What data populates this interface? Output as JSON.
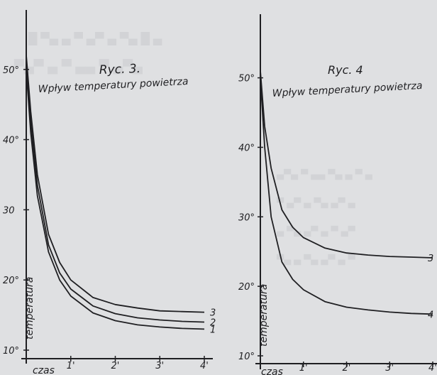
{
  "chart_data": [
    {
      "type": "line",
      "title": "Ryc. 3.",
      "subtitle": "Wpływ temperatury powietrza",
      "xlabel": "czas",
      "ylabel": "temperatura",
      "xlim": [
        0,
        4
      ],
      "ylim": [
        10,
        52
      ],
      "x_ticks": [
        "1'",
        "2'",
        "3'",
        "4'"
      ],
      "y_ticks": [
        "10°",
        "20°",
        "30",
        "40°",
        "50°"
      ],
      "series": [
        {
          "name": "3",
          "x": [
            0,
            0.1,
            0.25,
            0.5,
            0.75,
            1,
            1.5,
            2,
            2.5,
            3,
            3.5,
            4
          ],
          "y": [
            52,
            44,
            35,
            26.5,
            22.5,
            20,
            17.5,
            16.5,
            16,
            15.6,
            15.5,
            15.4
          ]
        },
        {
          "name": "2",
          "x": [
            0,
            0.1,
            0.25,
            0.5,
            0.75,
            1,
            1.5,
            2,
            2.5,
            3,
            3.5,
            4
          ],
          "y": [
            51,
            42.5,
            33.5,
            25,
            21,
            18.7,
            16.3,
            15.2,
            14.6,
            14.3,
            14.1,
            14.0
          ]
        },
        {
          "name": "1",
          "x": [
            0,
            0.1,
            0.25,
            0.5,
            0.75,
            1,
            1.5,
            2,
            2.5,
            3,
            3.5,
            4
          ],
          "y": [
            50,
            41,
            32,
            24,
            20,
            17.7,
            15.3,
            14.2,
            13.6,
            13.3,
            13.1,
            13.0
          ]
        }
      ]
    },
    {
      "type": "line",
      "title": "Ryc. 4",
      "subtitle": "Wpływ temperatury powietrza",
      "xlabel": "czas",
      "ylabel": "temperatura",
      "xlim": [
        0,
        4
      ],
      "ylim": [
        10,
        52
      ],
      "x_ticks": [
        "1'",
        "2'",
        "3'",
        "4'"
      ],
      "y_ticks": [
        "10°",
        "20°",
        "30°",
        "40°",
        "50°"
      ],
      "series": [
        {
          "name": "3",
          "x": [
            0,
            0.1,
            0.25,
            0.5,
            0.75,
            1,
            1.5,
            2,
            2.5,
            3,
            3.5,
            4
          ],
          "y": [
            51,
            43,
            37,
            31,
            28.5,
            27,
            25.5,
            24.8,
            24.5,
            24.3,
            24.2,
            24.1
          ]
        },
        {
          "name": "4",
          "x": [
            0,
            0.1,
            0.25,
            0.5,
            0.75,
            1,
            1.5,
            2,
            2.5,
            3,
            3.5,
            4
          ],
          "y": [
            50,
            40,
            30,
            23.5,
            21,
            19.5,
            17.8,
            17,
            16.6,
            16.3,
            16.1,
            16.0
          ]
        }
      ]
    }
  ]
}
